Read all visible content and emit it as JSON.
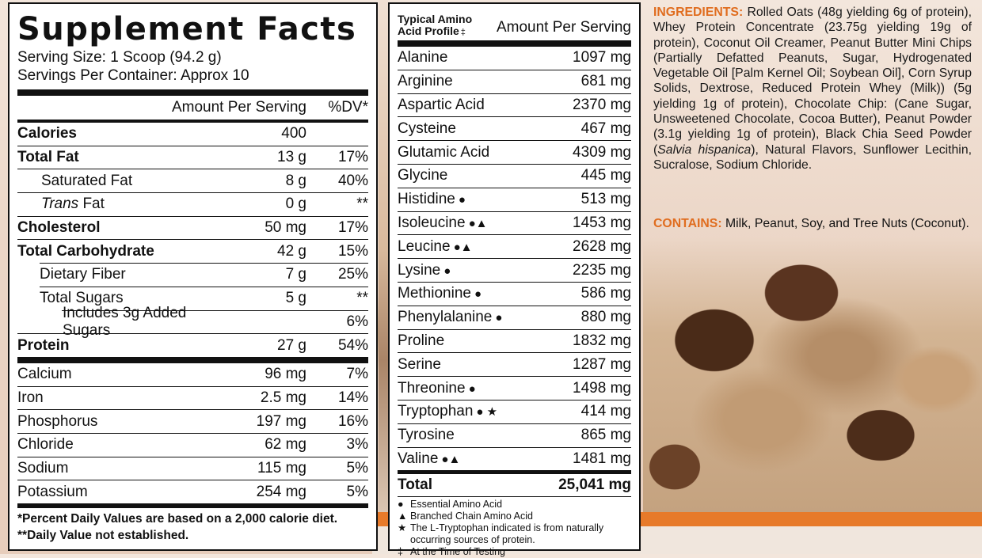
{
  "supplement_facts": {
    "title": "Supplement Facts",
    "serving_size": "Serving Size: 1 Scoop (94.2 g)",
    "servings_per_container": "Servings Per Container: Approx 10",
    "header_amount": "Amount Per Serving",
    "header_dv": "%DV*",
    "calories": {
      "name": "Calories",
      "amount": "400",
      "dv": ""
    },
    "macros": [
      {
        "name": "Total Fat",
        "amount": "13 g",
        "dv": "17%"
      },
      {
        "name": "Saturated Fat",
        "amount": "8 g",
        "dv": "40%"
      },
      {
        "name": "Trans",
        "suffix": " Fat",
        "amount": "0 g",
        "dv": "**"
      },
      {
        "name": "Cholesterol",
        "amount": "50 mg",
        "dv": "17%"
      },
      {
        "name": "Total Carbohydrate",
        "amount": "42 g",
        "dv": "15%"
      },
      {
        "name": "Dietary Fiber",
        "amount": "7 g",
        "dv": "25%"
      },
      {
        "name": "Total Sugars",
        "amount": "5 g",
        "dv": "**"
      },
      {
        "name": "Includes 3g Added Sugars",
        "amount": "",
        "dv": "6%"
      }
    ],
    "protein": {
      "name": "Protein",
      "amount": "27 g",
      "dv": "54%"
    },
    "minerals": [
      {
        "name": "Calcium",
        "amount": "96 mg",
        "dv": "7%"
      },
      {
        "name": "Iron",
        "amount": "2.5 mg",
        "dv": "14%"
      },
      {
        "name": "Phosphorus",
        "amount": "197 mg",
        "dv": "16%"
      },
      {
        "name": "Chloride",
        "amount": "62 mg",
        "dv": "3%"
      },
      {
        "name": "Sodium",
        "amount": "115 mg",
        "dv": "5%"
      },
      {
        "name": "Potassium",
        "amount": "254 mg",
        "dv": "5%"
      }
    ],
    "footnote1": "*Percent Daily Values are based on a 2,000 calorie diet.",
    "footnote2": "**Daily Value not established."
  },
  "amino_profile": {
    "title_line1": "Typical Amino",
    "title_line2": "Acid Profile",
    "title_mark": "‡",
    "header_amount": "Amount Per Serving",
    "rows": [
      {
        "name": "Alanine",
        "sym": "",
        "value": "1097 mg"
      },
      {
        "name": "Arginine",
        "sym": "",
        "value": "681 mg"
      },
      {
        "name": "Aspartic Acid",
        "sym": "",
        "value": "2370 mg"
      },
      {
        "name": "Cysteine",
        "sym": "",
        "value": "467 mg"
      },
      {
        "name": "Glutamic Acid",
        "sym": "",
        "value": "4309 mg"
      },
      {
        "name": "Glycine",
        "sym": "",
        "value": "445 mg"
      },
      {
        "name": "Histidine",
        "sym": "●",
        "value": "513 mg"
      },
      {
        "name": "Isoleucine",
        "sym": "●▲",
        "value": "1453 mg"
      },
      {
        "name": "Leucine",
        "sym": "●▲",
        "value": "2628 mg"
      },
      {
        "name": "Lysine",
        "sym": "●",
        "value": "2235 mg"
      },
      {
        "name": "Methionine",
        "sym": "●",
        "value": "586 mg"
      },
      {
        "name": "Phenylalanine",
        "sym": "●",
        "value": "880 mg"
      },
      {
        "name": "Proline",
        "sym": "",
        "value": "1832 mg"
      },
      {
        "name": "Serine",
        "sym": "",
        "value": "1287 mg"
      },
      {
        "name": "Threonine",
        "sym": "●",
        "value": "1498 mg"
      },
      {
        "name": "Tryptophan",
        "sym": "● ★",
        "value": "414 mg"
      },
      {
        "name": "Tyrosine",
        "sym": "",
        "value": "865 mg"
      },
      {
        "name": "Valine",
        "sym": "●▲",
        "value": "1481 mg"
      }
    ],
    "total_label": "Total",
    "total_value": "25,041 mg",
    "legend": [
      {
        "glyph": "●",
        "text": "Essential Amino Acid"
      },
      {
        "glyph": "▲",
        "text": "Branched Chain Amino Acid"
      },
      {
        "glyph": "★",
        "text": "The L-Tryptophan indicated is from naturally occurring sources of protein."
      },
      {
        "glyph": "‡",
        "text": "At the Time of Testing"
      }
    ]
  },
  "ingredients": {
    "label": "INGREDIENTS:",
    "part1": " Rolled Oats (48g yielding 6g of protein), Whey Protein Concentrate (23.75g yielding 19g of protein), Coconut Oil Creamer, Peanut Butter Mini Chips (Partially Defatted Peanuts, Sugar, Hydrogenated Vegetable Oil [Palm Kernel Oil; Soybean Oil], Corn Syrup Solids, Dextrose, Reduced Protein Whey (Milk)) (5g yielding 1g of protein), Chocolate Chip: (Cane Sugar, Unsweetened Chocolate, Cocoa Butter), Peanut Powder (3.1g yielding 1g of protein), Black Chia Seed Powder (",
    "italic": "Salvia hispanica",
    "part2": "), Natural Flavors, Sunflower Lecithin, Sucralose, Sodium Chloride.",
    "contains_label": "CONTAINS:",
    "contains_text": " Milk, Peanut, Soy, and Tree Nuts (Coconut)."
  },
  "colors": {
    "accent": "#e06d1f",
    "band": "#e77a2a"
  }
}
